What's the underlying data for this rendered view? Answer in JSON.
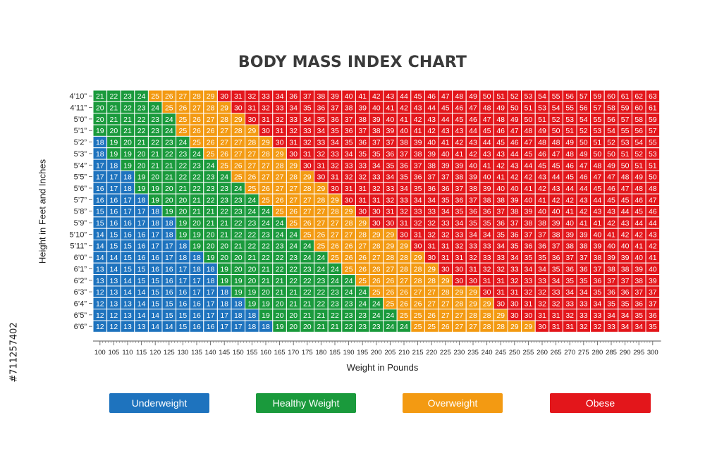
{
  "page": {
    "watermark_id": "#711257402"
  },
  "chart_data": {
    "type": "heatmap",
    "title": "BODY MASS INDEX CHART",
    "xlabel": "Weight in Pounds",
    "ylabel": "Height in Feet and Inches",
    "x": [
      100,
      105,
      110,
      115,
      120,
      125,
      130,
      135,
      140,
      145,
      150,
      155,
      160,
      165,
      170,
      175,
      180,
      185,
      190,
      195,
      200,
      205,
      210,
      215,
      220,
      225,
      230,
      235,
      240,
      245,
      250,
      255,
      260,
      265,
      270,
      275,
      280,
      285,
      290,
      295,
      300
    ],
    "y": [
      "4’10”",
      "4’11”",
      "5’0”",
      "5’1”",
      "5’2”",
      "5’3”",
      "5’4”",
      "5’5”",
      "5’6”",
      "5’7”",
      "5’8”",
      "5’9”",
      "5’10”",
      "5’11”",
      "6’0”",
      "6’1”",
      "6’2”",
      "6’3”",
      "6’4”",
      "6’5”",
      "6’6”"
    ],
    "y_inches": [
      58,
      59,
      60,
      61,
      62,
      63,
      64,
      65,
      66,
      67,
      68,
      69,
      70,
      71,
      72,
      73,
      74,
      75,
      76,
      77,
      78
    ],
    "values_rule": "BMI = round(703 * weight / height_in^2)",
    "categories": [
      {
        "name": "Underweight",
        "color": "#1e73be",
        "max": 18
      },
      {
        "name": "Healthy Weight",
        "color": "#1a9a3c",
        "max": 24
      },
      {
        "name": "Overweight",
        "color": "#f39a12",
        "max": 29
      },
      {
        "name": "Obese",
        "color": "#e3161b",
        "max": 999
      }
    ],
    "legend_placement": "bottom"
  }
}
